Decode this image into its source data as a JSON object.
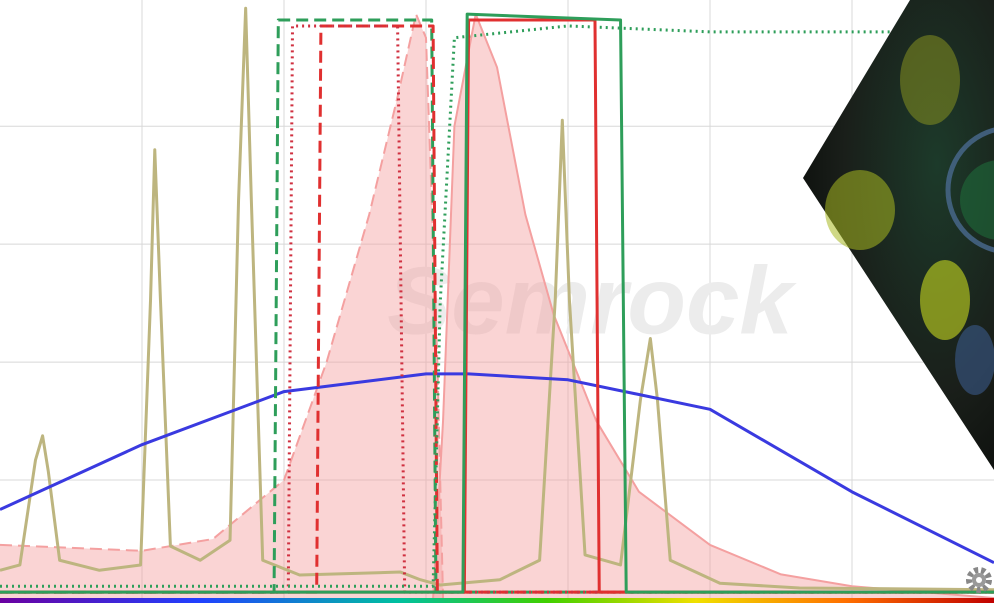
{
  "chart_data": {
    "type": "line",
    "watermark": "Semrock",
    "xlim": [
      0,
      7
    ],
    "ylim": [
      0,
      101.4
    ],
    "xticks": [
      1,
      2,
      3,
      4,
      5,
      6
    ],
    "yticks": [
      20,
      40,
      60,
      80
    ],
    "grid": true,
    "series": [
      {
        "color": "#f4a0a0",
        "dash": "dashed",
        "fill": true,
        "x": [
          0,
          1,
          1.5,
          2,
          2.3,
          2.6,
          2.8,
          2.93,
          3.0,
          3.08,
          3.12
        ],
        "values": [
          9,
          8,
          10,
          20,
          40,
          65,
          85,
          99,
          95,
          40,
          0
        ]
      },
      {
        "color": "#f4a0a0",
        "dash": "solid",
        "fill": true,
        "x": [
          3.05,
          3.12,
          3.2,
          3.35,
          3.5,
          3.7,
          3.9,
          4.2,
          4.5,
          5,
          5.5,
          6,
          7
        ],
        "values": [
          0,
          30,
          80,
          99,
          90,
          65,
          48,
          30,
          18,
          9,
          4,
          2,
          0
        ]
      },
      {
        "color": "#bdb57f",
        "dash": "solid",
        "fill": false,
        "x": [
          0,
          0.14,
          0.25,
          0.3,
          0.34,
          0.42,
          0.7,
          0.99,
          1.06,
          1.09,
          1.13,
          1.2,
          1.41,
          1.62,
          1.68,
          1.73,
          1.77,
          1.85,
          2.11,
          2.82,
          2.96,
          3.1,
          3.52,
          3.8,
          3.91,
          3.96,
          4.01,
          4.12,
          4.37,
          4.51,
          4.58,
          4.63,
          4.72,
          5.07,
          5.63,
          7
        ],
        "values": [
          4.7,
          5.6,
          23.4,
          27.5,
          21.5,
          6.4,
          4.7,
          5.6,
          50.5,
          76,
          50.5,
          8.8,
          6.4,
          9.8,
          67.5,
          100,
          67.5,
          6.4,
          3.9,
          4.4,
          3.1,
          2.2,
          3.1,
          6.4,
          50.5,
          81,
          50.5,
          7.3,
          5.6,
          33.6,
          44,
          33.6,
          6.4,
          2.5,
          1.7,
          1.4
        ]
      },
      {
        "color": "#3a3ae0",
        "dash": "solid",
        "fill": false,
        "x": [
          0,
          1,
          2,
          3,
          3.3,
          4,
          5,
          6,
          7
        ],
        "values": [
          15,
          26,
          35,
          38,
          38,
          37,
          32,
          18,
          6
        ]
      },
      {
        "color": "#2e9e5a",
        "dash": "dashed",
        "fill": false,
        "x": [
          0,
          1.93,
          1.96,
          3.04,
          3.07,
          7
        ],
        "values": [
          1,
          1,
          98,
          98,
          1,
          1
        ]
      },
      {
        "color": "#e03030",
        "dash": "dashed",
        "fill": false,
        "x": [
          0,
          2.23,
          2.26,
          3.05,
          3.08,
          7
        ],
        "values": [
          1,
          1,
          97,
          97,
          1,
          1
        ]
      },
      {
        "color": "#d03040",
        "dash": "dotted",
        "fill": false,
        "x": [
          0,
          2.03,
          2.06,
          2.8,
          2.85,
          7
        ],
        "values": [
          1,
          1,
          97,
          97,
          1,
          1
        ]
      },
      {
        "color": "#2e9e5a",
        "dash": "dotted",
        "fill": false,
        "x": [
          0,
          3.05,
          3.1,
          3.2,
          4,
          5,
          6,
          6.3
        ],
        "values": [
          2,
          2,
          50,
          95,
          97,
          96,
          96,
          96
        ]
      },
      {
        "color": "#e03030",
        "dash": "solid",
        "fill": false,
        "x": [
          0,
          3.27,
          3.3,
          4.19,
          4.22,
          7
        ],
        "values": [
          1,
          1,
          98,
          98,
          1,
          1
        ]
      },
      {
        "color": "#2e9e5a",
        "dash": "solid",
        "fill": false,
        "x": [
          0,
          3.26,
          3.29,
          4.37,
          4.41,
          7
        ],
        "values": [
          1,
          1,
          99,
          98,
          1,
          1
        ]
      }
    ]
  }
}
